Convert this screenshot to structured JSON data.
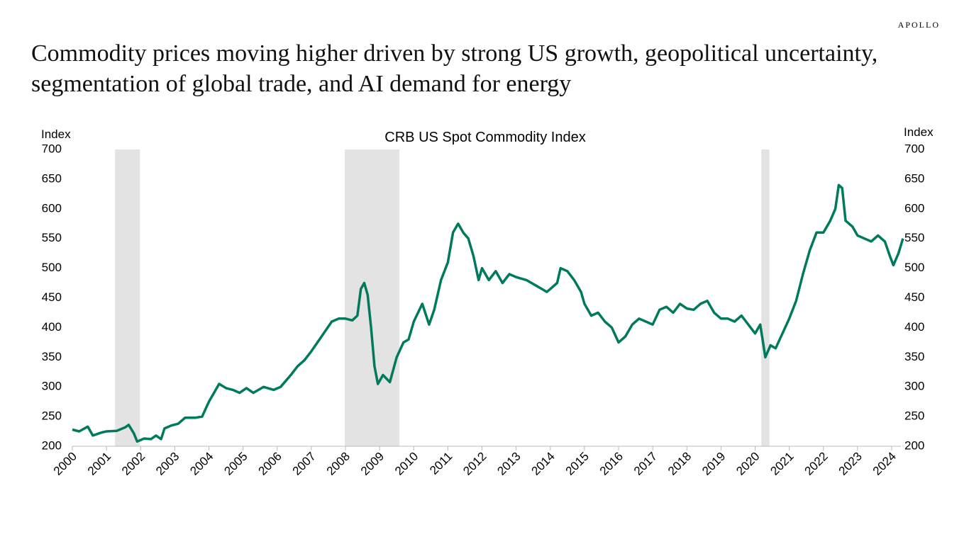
{
  "brand": "APOLLO",
  "headline": [
    "Commodity prices moving higher driven by strong US growth, geopolitical uncertainty,",
    "segmentation of global trade, and AI demand for energy"
  ],
  "chart_data": {
    "type": "line",
    "title": "CRB US Spot Commodity Index",
    "y_label": "Index",
    "y2_label": "Index",
    "color": "#007a5c",
    "shade_color": "#e3e3e3",
    "x": [
      2000.0,
      2000.2,
      2000.45,
      2000.6,
      2000.85,
      2001.0,
      2001.3,
      2001.55,
      2001.65,
      2001.8,
      2001.9,
      2002.1,
      2002.3,
      2002.45,
      2002.6,
      2002.7,
      2002.9,
      2003.1,
      2003.3,
      2003.6,
      2003.8,
      2004.0,
      2004.2,
      2004.3,
      2004.5,
      2004.7,
      2004.9,
      2005.1,
      2005.3,
      2005.6,
      2005.9,
      2006.1,
      2006.4,
      2006.6,
      2006.8,
      2007.0,
      2007.3,
      2007.6,
      2007.8,
      2008.0,
      2008.2,
      2008.35,
      2008.45,
      2008.55,
      2008.65,
      2008.75,
      2008.85,
      2008.95,
      2009.1,
      2009.3,
      2009.5,
      2009.7,
      2009.85,
      2010.0,
      2010.25,
      2010.45,
      2010.6,
      2010.8,
      2011.0,
      2011.15,
      2011.3,
      2011.45,
      2011.6,
      2011.75,
      2011.9,
      2012.0,
      2012.2,
      2012.4,
      2012.6,
      2012.8,
      2013.0,
      2013.3,
      2013.6,
      2013.9,
      2014.0,
      2014.2,
      2014.3,
      2014.5,
      2014.7,
      2014.9,
      2015.0,
      2015.2,
      2015.4,
      2015.6,
      2015.8,
      2016.0,
      2016.2,
      2016.4,
      2016.6,
      2016.8,
      2017.0,
      2017.2,
      2017.4,
      2017.6,
      2017.8,
      2018.0,
      2018.2,
      2018.4,
      2018.6,
      2018.8,
      2019.0,
      2019.2,
      2019.4,
      2019.6,
      2019.8,
      2020.0,
      2020.15,
      2020.3,
      2020.45,
      2020.6,
      2020.8,
      2021.0,
      2021.2,
      2021.4,
      2021.6,
      2021.8,
      2022.0,
      2022.2,
      2022.35,
      2022.45,
      2022.55,
      2022.65,
      2022.85,
      2023.0,
      2023.2,
      2023.4,
      2023.6,
      2023.8,
      2023.95,
      2024.05,
      2024.2,
      2024.33
    ],
    "values": [
      228,
      225,
      233,
      218,
      223,
      225,
      226,
      232,
      236,
      222,
      208,
      213,
      212,
      218,
      212,
      230,
      235,
      238,
      248,
      248,
      250,
      275,
      295,
      305,
      298,
      295,
      290,
      298,
      290,
      300,
      295,
      300,
      320,
      335,
      345,
      360,
      385,
      410,
      415,
      415,
      412,
      420,
      465,
      475,
      455,
      400,
      335,
      305,
      320,
      308,
      350,
      375,
      380,
      410,
      440,
      405,
      430,
      480,
      510,
      560,
      575,
      560,
      550,
      520,
      480,
      500,
      480,
      495,
      475,
      490,
      485,
      480,
      470,
      460,
      465,
      475,
      500,
      495,
      480,
      460,
      440,
      420,
      425,
      410,
      400,
      375,
      385,
      405,
      415,
      410,
      405,
      430,
      435,
      425,
      440,
      432,
      430,
      440,
      445,
      425,
      415,
      415,
      410,
      420,
      405,
      390,
      405,
      350,
      370,
      365,
      390,
      415,
      445,
      490,
      530,
      560,
      560,
      580,
      600,
      640,
      635,
      580,
      570,
      555,
      550,
      545,
      555,
      545,
      520,
      505,
      525,
      550
    ],
    "shaded_periods": [
      [
        2001.25,
        2001.98
      ],
      [
        2007.98,
        2009.58
      ],
      [
        2020.18,
        2020.42
      ]
    ],
    "xlim": [
      2000,
      2024.4
    ],
    "xticks": [
      2000,
      2001,
      2002,
      2003,
      2004,
      2005,
      2006,
      2007,
      2008,
      2009,
      2010,
      2011,
      2012,
      2013,
      2014,
      2015,
      2016,
      2017,
      2018,
      2019,
      2020,
      2021,
      2022,
      2023,
      2024
    ],
    "ylim": [
      200,
      700
    ],
    "yticks": [
      200,
      250,
      300,
      350,
      400,
      450,
      500,
      550,
      600,
      650,
      700
    ],
    "y2lim": [
      200,
      700
    ],
    "y2ticks": [
      200,
      250,
      300,
      350,
      400,
      450,
      500,
      550,
      600,
      650,
      700
    ]
  }
}
